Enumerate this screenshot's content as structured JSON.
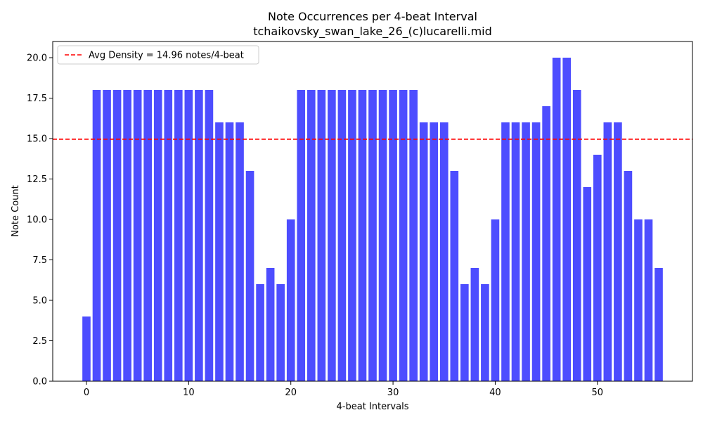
{
  "chart_data": {
    "type": "bar",
    "title": "Note Occurrences per 4-beat Interval",
    "subtitle": "tchaikovsky_swan_lake_26_(c)lucarelli.mid",
    "xlabel": "4-beat Intervals",
    "ylabel": "Note Count",
    "x": [
      0,
      1,
      2,
      3,
      4,
      5,
      6,
      7,
      8,
      9,
      10,
      11,
      12,
      13,
      14,
      15,
      16,
      17,
      18,
      19,
      20,
      21,
      22,
      23,
      24,
      25,
      26,
      27,
      28,
      29,
      30,
      31,
      32,
      33,
      34,
      35,
      36,
      37,
      38,
      39,
      40,
      41,
      42,
      43,
      44,
      45,
      46,
      47,
      48,
      49,
      50,
      51,
      52,
      53,
      54,
      55,
      56
    ],
    "values": [
      4,
      18,
      18,
      18,
      18,
      18,
      18,
      18,
      18,
      18,
      18,
      18,
      18,
      16,
      16,
      16,
      13,
      6,
      7,
      6,
      10,
      18,
      18,
      18,
      18,
      18,
      18,
      18,
      18,
      18,
      18,
      18,
      18,
      16,
      16,
      16,
      13,
      6,
      7,
      6,
      10,
      16,
      16,
      16,
      16,
      17,
      20,
      20,
      18,
      12,
      14,
      16,
      16,
      13,
      10,
      10,
      7
    ],
    "xlim": [
      -3.3,
      59.3
    ],
    "ylim": [
      0,
      21
    ],
    "x_ticks": [
      0,
      10,
      20,
      30,
      40,
      50
    ],
    "x_tick_labels": [
      "0",
      "10",
      "20",
      "30",
      "40",
      "50"
    ],
    "y_ticks": [
      0,
      2.5,
      5,
      7.5,
      10,
      12.5,
      15,
      17.5,
      20
    ],
    "y_tick_labels": [
      "0.0",
      "2.5",
      "5.0",
      "7.5",
      "10.0",
      "12.5",
      "15.0",
      "17.5",
      "20.0"
    ],
    "bar_color": "#4d4dff",
    "bar_width": 0.8,
    "average_line": {
      "value": 14.96,
      "label": "Avg Density = 14.96 notes/4-beat",
      "color": "#ff0000",
      "style": "dashed"
    },
    "legend_placement": "top-left",
    "grid": false
  }
}
